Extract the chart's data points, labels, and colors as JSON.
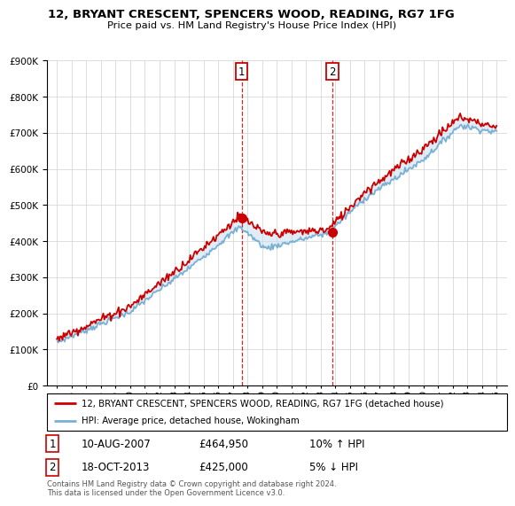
{
  "title": "12, BRYANT CRESCENT, SPENCERS WOOD, READING, RG7 1FG",
  "subtitle": "Price paid vs. HM Land Registry's House Price Index (HPI)",
  "ylim": [
    0,
    900000
  ],
  "sale1_year": 2007.61,
  "sale1_price": 464950,
  "sale1_date": "10-AUG-2007",
  "sale1_pct": "10%",
  "sale1_dir": "↑",
  "sale2_year": 2013.8,
  "sale2_price": 425000,
  "sale2_date": "18-OCT-2013",
  "sale2_pct": "5%",
  "sale2_dir": "↓",
  "line_color_price": "#cc0000",
  "line_color_hpi": "#7ab0d4",
  "shade_color": "#c8dff0",
  "vline_color": "#cc0000",
  "marker_color_price": "#cc0000",
  "legend_label_price": "12, BRYANT CRESCENT, SPENCERS WOOD, READING, RG7 1FG (detached house)",
  "legend_label_hpi": "HPI: Average price, detached house, Wokingham",
  "footnote": "Contains HM Land Registry data © Crown copyright and database right 2024.\nThis data is licensed under the Open Government Licence v3.0.",
  "background_color": "#ffffff"
}
